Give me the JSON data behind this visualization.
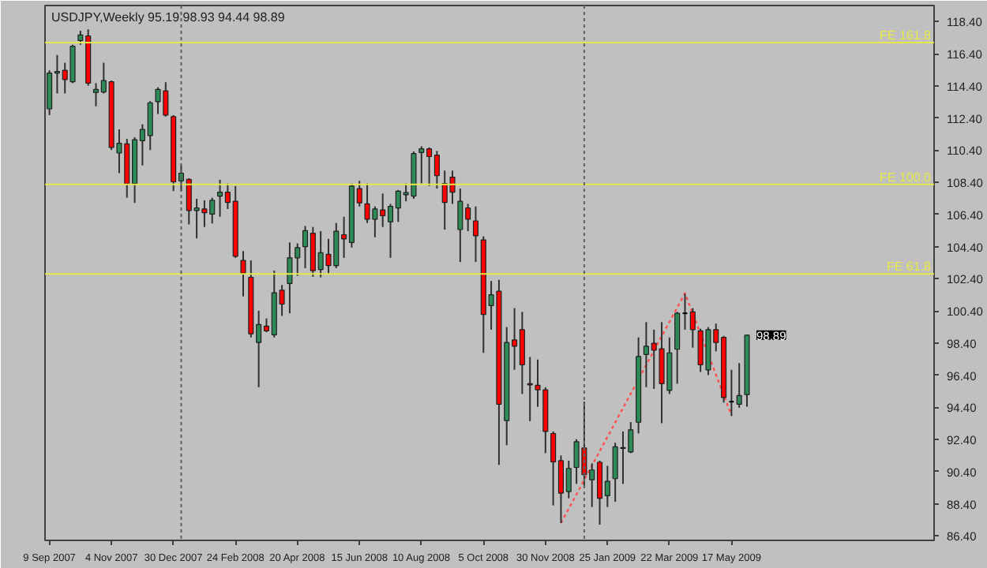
{
  "chart_data": {
    "type": "candlestick",
    "title": "USDJPY,Weekly  95.19 98.93 94.44 98.89",
    "x": [
      "2007-09-09",
      "2007-09-16",
      "2007-09-23",
      "2007-09-30",
      "2007-10-07",
      "2007-10-14",
      "2007-10-21",
      "2007-10-28",
      "2007-11-04",
      "2007-11-11",
      "2007-11-18",
      "2007-11-25",
      "2007-12-02",
      "2007-12-09",
      "2007-12-16",
      "2007-12-23",
      "2007-12-30",
      "2008-01-06",
      "2008-01-13",
      "2008-01-20",
      "2008-01-27",
      "2008-02-03",
      "2008-02-10",
      "2008-02-17",
      "2008-02-24",
      "2008-03-02",
      "2008-03-09",
      "2008-03-16",
      "2008-03-23",
      "2008-03-30",
      "2008-04-06",
      "2008-04-13",
      "2008-04-20",
      "2008-04-27",
      "2008-05-04",
      "2008-05-11",
      "2008-05-18",
      "2008-05-25",
      "2008-06-01",
      "2008-06-08",
      "2008-06-15",
      "2008-06-22",
      "2008-06-29",
      "2008-07-06",
      "2008-07-13",
      "2008-07-20",
      "2008-07-27",
      "2008-08-03",
      "2008-08-10",
      "2008-08-17",
      "2008-08-24",
      "2008-08-31",
      "2008-09-07",
      "2008-09-14",
      "2008-09-21",
      "2008-09-28",
      "2008-10-05",
      "2008-10-12",
      "2008-10-19",
      "2008-10-26",
      "2008-11-02",
      "2008-11-09",
      "2008-11-16",
      "2008-11-23",
      "2008-11-30",
      "2008-12-07",
      "2008-12-14",
      "2008-12-21",
      "2008-12-28",
      "2009-01-04",
      "2009-01-11",
      "2009-01-18",
      "2009-01-25",
      "2009-02-01",
      "2009-02-08",
      "2009-02-15",
      "2009-02-22",
      "2009-03-01",
      "2009-03-08",
      "2009-03-15",
      "2009-03-22",
      "2009-03-29",
      "2009-04-05",
      "2009-04-12",
      "2009-04-19",
      "2009-04-26",
      "2009-05-03",
      "2009-05-10",
      "2009-05-17",
      "2009-05-24",
      "2009-05-31"
    ],
    "ohlc": [
      [
        112.97,
        115.37,
        112.58,
        115.2
      ],
      [
        115.2,
        116.32,
        113.93,
        115.3
      ],
      [
        115.37,
        115.84,
        113.93,
        114.79
      ],
      [
        114.66,
        116.96,
        114.57,
        116.87
      ],
      [
        117.22,
        117.83,
        116.96,
        117.57
      ],
      [
        117.51,
        117.92,
        114.41,
        114.57
      ],
      [
        113.99,
        114.57,
        113.13,
        114.18
      ],
      [
        114.02,
        115.84,
        113.93,
        114.73
      ],
      [
        114.66,
        114.73,
        110.41,
        110.57
      ],
      [
        110.22,
        111.69,
        108.97,
        110.83
      ],
      [
        110.79,
        111.11,
        107.44,
        108.3
      ],
      [
        108.33,
        111.21,
        107.12,
        111.05
      ],
      [
        110.99,
        112.01,
        109.45,
        111.69
      ],
      [
        111.31,
        113.45,
        110.41,
        113.35
      ],
      [
        113.42,
        114.31,
        112.65,
        114.18
      ],
      [
        114.09,
        114.63,
        112.49,
        112.58
      ],
      [
        112.49,
        112.58,
        107.85,
        108.43
      ],
      [
        108.49,
        109.5,
        107.85,
        108.97
      ],
      [
        108.59,
        108.65,
        105.78,
        106.64
      ],
      [
        106.64,
        107.38,
        104.91,
        106.8
      ],
      [
        106.74,
        107.28,
        105.62,
        106.51
      ],
      [
        106.42,
        107.44,
        105.84,
        107.28
      ],
      [
        107.54,
        108.56,
        106.26,
        107.79
      ],
      [
        107.79,
        108.33,
        106.74,
        107.15
      ],
      [
        107.22,
        108.17,
        103.7,
        103.8
      ],
      [
        103.54,
        104.12,
        101.3,
        102.74
      ],
      [
        102.49,
        103.54,
        98.75,
        98.97
      ],
      [
        98.43,
        100.41,
        95.65,
        99.55
      ],
      [
        99.45,
        99.93,
        99.07,
        99.16
      ],
      [
        98.91,
        102.9,
        98.75,
        101.53
      ],
      [
        101.69,
        102.01,
        100.09,
        100.82
      ],
      [
        102.1,
        104.66,
        100.25,
        103.7
      ],
      [
        103.7,
        104.6,
        102.58,
        104.34
      ],
      [
        104.4,
        105.68,
        103.06,
        105.39
      ],
      [
        105.23,
        105.62,
        102.52,
        102.9
      ],
      [
        102.97,
        105.36,
        102.49,
        104.02
      ],
      [
        103.92,
        104.88,
        102.68,
        103.22
      ],
      [
        103.22,
        105.87,
        103.06,
        105.36
      ],
      [
        105.14,
        106.26,
        103.7,
        104.88
      ],
      [
        104.66,
        108.33,
        104.34,
        108.17
      ],
      [
        108.01,
        108.49,
        106.9,
        107.12
      ],
      [
        107.06,
        108.33,
        105.87,
        106.1
      ],
      [
        106.1,
        106.9,
        104.98,
        106.74
      ],
      [
        106.68,
        107.7,
        105.62,
        106.32
      ],
      [
        105.94,
        107.06,
        103.7,
        106.9
      ],
      [
        106.8,
        107.92,
        105.94,
        107.85
      ],
      [
        107.63,
        108.33,
        107.22,
        107.76
      ],
      [
        107.54,
        110.32,
        107.38,
        110.19
      ],
      [
        110.25,
        110.64,
        108.33,
        110.48
      ],
      [
        110.48,
        110.57,
        108.17,
        110.0
      ],
      [
        110.09,
        110.35,
        108.01,
        108.81
      ],
      [
        108.33,
        109.13,
        105.46,
        107.15
      ],
      [
        108.72,
        109.13,
        107.06,
        107.79
      ],
      [
        105.46,
        108.01,
        103.44,
        107.22
      ],
      [
        106.8,
        107.06,
        105.36,
        106.1
      ],
      [
        106.0,
        106.9,
        103.44,
        105.07
      ],
      [
        104.82,
        105.04,
        97.79,
        100.18
      ],
      [
        100.73,
        102.26,
        99.23,
        101.4
      ],
      [
        101.62,
        102.33,
        90.82,
        94.59
      ],
      [
        93.57,
        99.39,
        92.04,
        98.43
      ],
      [
        98.59,
        100.57,
        96.73,
        98.2
      ],
      [
        99.23,
        100.34,
        95.23,
        97.05
      ],
      [
        95.87,
        97.53,
        93.54,
        95.8
      ],
      [
        95.77,
        97.37,
        94.43,
        95.49
      ],
      [
        95.49,
        95.65,
        91.55,
        92.9
      ],
      [
        92.77,
        92.9,
        88.3,
        91.01
      ],
      [
        91.08,
        91.4,
        87.2,
        89.06
      ],
      [
        89.16,
        91.08,
        88.74,
        90.6
      ],
      [
        90.66,
        92.42,
        89.64,
        92.26
      ],
      [
        91.87,
        94.75,
        89.48,
        90.21
      ],
      [
        89.89,
        90.92,
        88.2,
        90.5
      ],
      [
        90.98,
        91.08,
        87.1,
        88.74
      ],
      [
        88.9,
        90.76,
        88.2,
        89.8
      ],
      [
        89.96,
        92.2,
        88.52,
        91.94
      ],
      [
        91.84,
        92.9,
        89.64,
        91.9
      ],
      [
        91.62,
        93.48,
        91.55,
        93.0
      ],
      [
        93.47,
        98.75,
        92.77,
        97.56
      ],
      [
        97.69,
        99.7,
        95.65,
        98.2
      ],
      [
        98.39,
        99.23,
        95.55,
        97.95
      ],
      [
        98.04,
        99.7,
        93.41,
        95.87
      ],
      [
        95.45,
        98.75,
        95.23,
        97.79
      ],
      [
        98.01,
        100.34,
        95.87,
        100.25
      ],
      [
        100.25,
        101.46,
        99.23,
        100.25
      ],
      [
        100.34,
        100.57,
        98.11,
        99.23
      ],
      [
        99.16,
        99.29,
        96.6,
        97.05
      ],
      [
        96.73,
        99.39,
        96.41,
        99.23
      ],
      [
        99.23,
        99.61,
        97.88,
        98.43
      ],
      [
        98.75,
        98.84,
        94.69,
        95.01
      ],
      [
        94.75,
        96.73,
        93.86,
        94.75
      ],
      [
        94.59,
        97.15,
        94.37,
        95.13
      ],
      [
        95.19,
        98.93,
        94.44,
        98.89
      ]
    ],
    "colors": [
      "#2e8b57",
      "#2e8b57",
      "#ff0000",
      "#2e8b57",
      "#2e8b57",
      "#ff0000",
      "#2e8b57",
      "#2e8b57",
      "#ff0000",
      "#2e8b57",
      "#ff0000",
      "#2e8b57",
      "#2e8b57",
      "#2e8b57",
      "#2e8b57",
      "#ff0000",
      "#ff0000",
      "#2e8b57",
      "#ff0000",
      "#2e8b57",
      "#ff0000",
      "#2e8b57",
      "#2e8b57",
      "#ff0000",
      "#ff0000",
      "#ff0000",
      "#ff0000",
      "#2e8b57",
      "#ff0000",
      "#2e8b57",
      "#ff0000",
      "#2e8b57",
      "#2e8b57",
      "#2e8b57",
      "#ff0000",
      "#2e8b57",
      "#ff0000",
      "#2e8b57",
      "#ff0000",
      "#2e8b57",
      "#ff0000",
      "#ff0000",
      "#2e8b57",
      "#ff0000",
      "#2e8b57",
      "#2e8b57",
      "#2e8b57",
      "#2e8b57",
      "#2e8b57",
      "#ff0000",
      "#ff0000",
      "#ff0000",
      "#ff0000",
      "#2e8b57",
      "#ff0000",
      "#ff0000",
      "#ff0000",
      "#2e8b57",
      "#ff0000",
      "#2e8b57",
      "#ff0000",
      "#ff0000",
      "#ff0000",
      "#ff0000",
      "#ff0000",
      "#ff0000",
      "#ff0000",
      "#2e8b57",
      "#2e8b57",
      "#ff0000",
      "#2e8b57",
      "#ff0000",
      "#2e8b57",
      "#2e8b57",
      "#2e8b57",
      "#2e8b57",
      "#2e8b57",
      "#2e8b57",
      "#ff0000",
      "#ff0000",
      "#2e8b57",
      "#2e8b57",
      "#000000",
      "#ff0000",
      "#ff0000",
      "#2e8b57",
      "#ff0000",
      "#ff0000",
      "#000000",
      "#2e8b57",
      "#2e8b57"
    ],
    "series": [
      {
        "type": "line",
        "color": "#ff5050",
        "line_style": "dotted",
        "x": [
          "2008-12-14",
          "2009-04-05",
          "2009-05-17"
        ],
        "values": [
          87.2,
          101.5,
          93.9
        ]
      }
    ],
    "ref_lines": [
      {
        "axis": "y",
        "value": 117.09,
        "label": "FE 161.8",
        "color": "#e8e84a",
        "line_style": "solid"
      },
      {
        "axis": "y",
        "value": 108.27,
        "label": "FE 100.0",
        "color": "#e8e84a",
        "line_style": "solid"
      },
      {
        "axis": "y",
        "value": 102.7,
        "label": "FE 61.8",
        "color": "#e8e84a",
        "line_style": "solid"
      },
      {
        "axis": "x",
        "value": "2008-01-06",
        "color": "#606060",
        "line_style": "dotted"
      },
      {
        "axis": "x",
        "value": "2009-01-04",
        "color": "#606060",
        "line_style": "dotted"
      }
    ],
    "annotations": [
      {
        "text": "98.89",
        "x": "2009-05-31",
        "y": 98.89
      }
    ],
    "xlim": [
      "2007-09-05",
      "2009-11-16"
    ],
    "ylim": [
      86.12,
      119.4
    ],
    "xticks": [
      {
        "value": "2007-09-09",
        "label": "9 Sep 2007"
      },
      {
        "value": "2007-11-04",
        "label": "4 Nov 2007"
      },
      {
        "value": "2007-12-30",
        "label": "30 Dec 2007"
      },
      {
        "value": "2008-02-24",
        "label": "24 Feb 2008"
      },
      {
        "value": "2008-04-20",
        "label": "20 Apr 2008"
      },
      {
        "value": "2008-06-15",
        "label": "15 Jun 2008"
      },
      {
        "value": "2008-08-10",
        "label": "10 Aug 2008"
      },
      {
        "value": "2008-10-05",
        "label": "5 Oct 2008"
      },
      {
        "value": "2008-11-30",
        "label": "30 Nov 2008"
      },
      {
        "value": "2009-01-25",
        "label": "25 Jan 2009"
      },
      {
        "value": "2009-03-22",
        "label": "22 Mar 2009"
      },
      {
        "value": "2009-05-17",
        "label": "17 May 2009"
      }
    ],
    "yticks": [
      {
        "value": 86.4,
        "label": "86.40"
      },
      {
        "value": 88.4,
        "label": "88.40"
      },
      {
        "value": 90.4,
        "label": "90.40"
      },
      {
        "value": 92.4,
        "label": "92.40"
      },
      {
        "value": 94.4,
        "label": "94.40"
      },
      {
        "value": 96.4,
        "label": "96.40"
      },
      {
        "value": 98.4,
        "label": "98.40"
      },
      {
        "value": 100.4,
        "label": "100.40"
      },
      {
        "value": 102.4,
        "label": "102.40"
      },
      {
        "value": 104.4,
        "label": "104.40"
      },
      {
        "value": 106.4,
        "label": "106.40"
      },
      {
        "value": 108.4,
        "label": "108.40"
      },
      {
        "value": 110.4,
        "label": "110.40"
      },
      {
        "value": 112.4,
        "label": "112.40"
      },
      {
        "value": 114.4,
        "label": "114.40"
      },
      {
        "value": 116.4,
        "label": "116.40"
      },
      {
        "value": 118.4,
        "label": "118.40"
      }
    ]
  }
}
